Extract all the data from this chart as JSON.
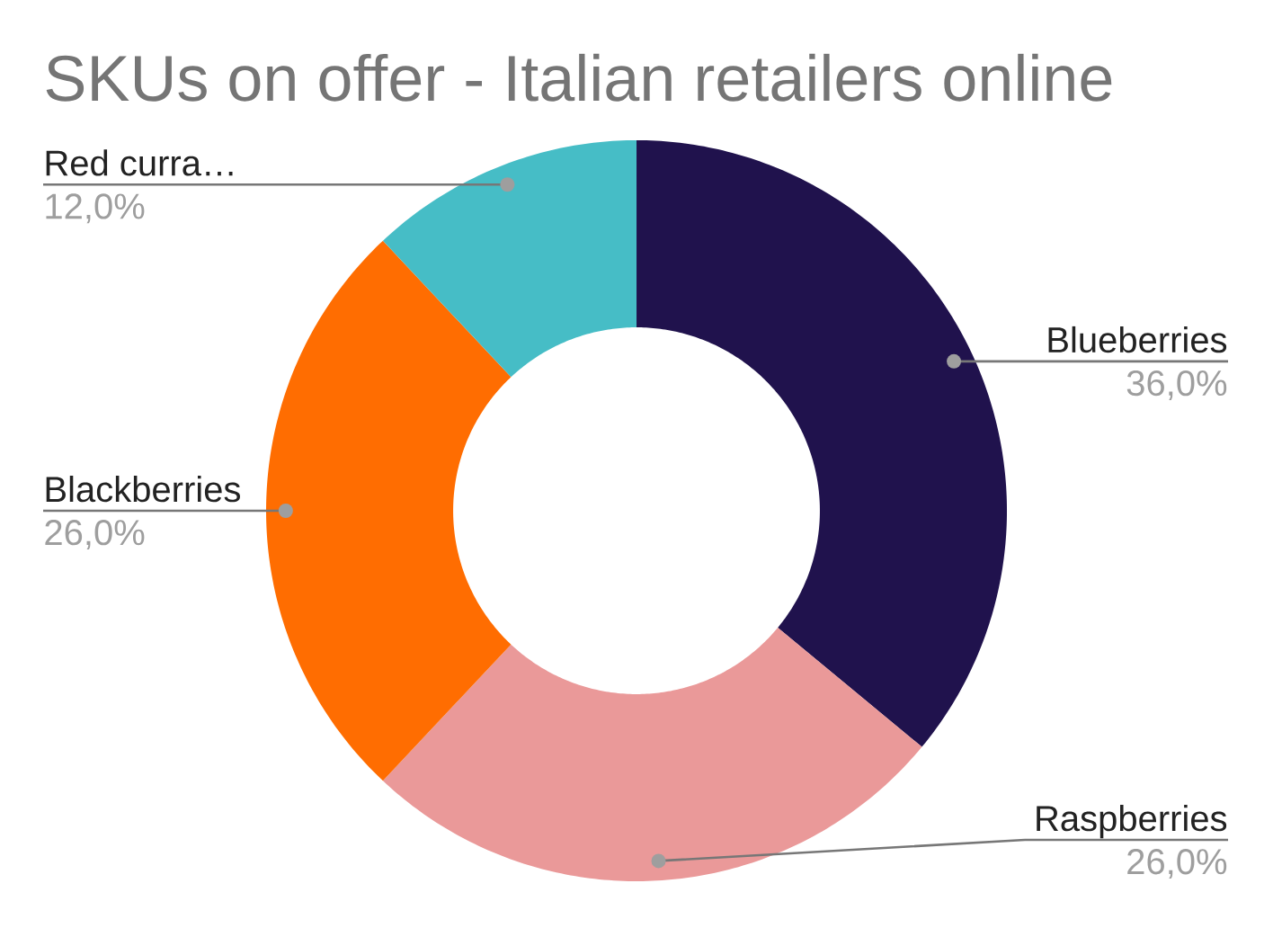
{
  "chart_data": {
    "type": "donut",
    "title": "SKUs on offer - Italian retailers online",
    "categories": [
      "Blueberries",
      "Raspberries",
      "Blackberries",
      "Red curra…"
    ],
    "values": [
      36,
      26,
      26,
      12
    ],
    "colors": [
      "#20124d",
      "#ea9999",
      "#ff6d01",
      "#46bdc6"
    ],
    "value_labels": [
      "36,0%",
      "26,0%",
      "26,0%",
      "12,0%"
    ]
  }
}
